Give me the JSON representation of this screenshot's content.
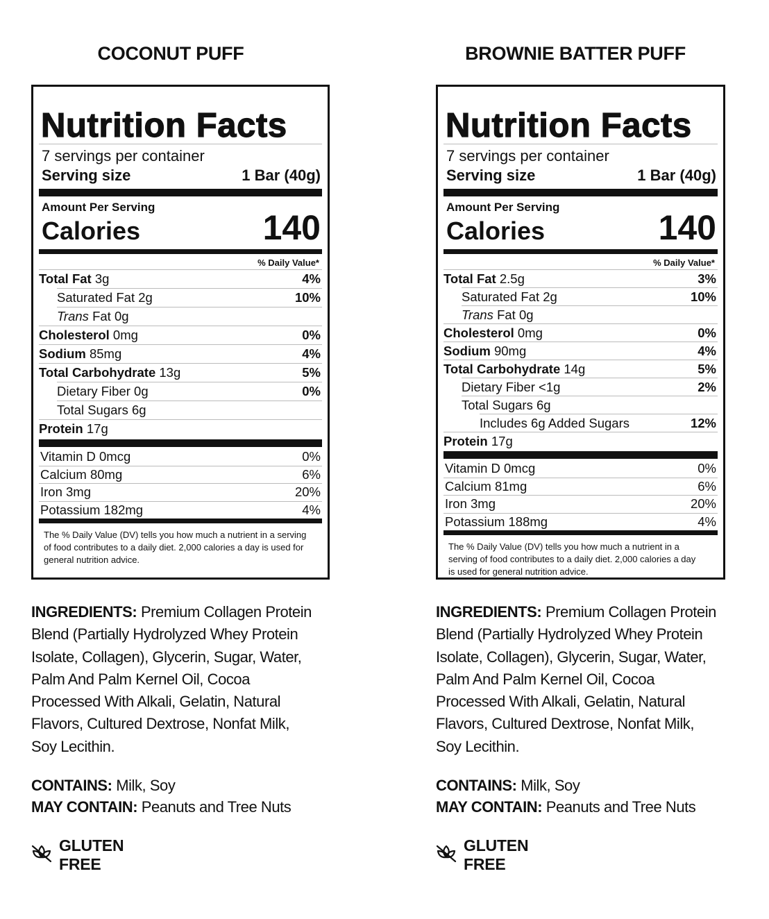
{
  "products": [
    {
      "title": "COCONUT PUFF",
      "nutrition": {
        "heading": "Nutrition Facts",
        "servings": "7 servings per container",
        "serving_size_label": "Serving size",
        "serving_size_value": "1 Bar (40g)",
        "amount_per_serving": "Amount Per Serving",
        "calories_label": "Calories",
        "calories_value": "140",
        "dv_header": "% Daily Value*",
        "rows": [
          {
            "name": "Total Fat",
            "amount": "3g",
            "dv": "4%",
            "bold": true,
            "indent": 0
          },
          {
            "name": "Saturated Fat",
            "amount": "2g",
            "dv": "10%",
            "bold": false,
            "indent": 1
          },
          {
            "italic": "Trans",
            "name": "Fat",
            "amount": "0g",
            "dv": "",
            "bold": false,
            "indent": 1
          },
          {
            "name": "Cholesterol",
            "amount": "0mg",
            "dv": "0%",
            "bold": true,
            "indent": 0
          },
          {
            "name": "Sodium",
            "amount": "85mg",
            "dv": "4%",
            "bold": true,
            "indent": 0
          },
          {
            "name": "Total Carbohydrate",
            "amount": "13g",
            "dv": "5%",
            "bold": true,
            "indent": 0
          },
          {
            "name": "Dietary Fiber",
            "amount": "0g",
            "dv": "0%",
            "bold": false,
            "indent": 1
          },
          {
            "name": "Total Sugars",
            "amount": "6g",
            "dv": "",
            "bold": false,
            "indent": 1
          },
          {
            "name": "Protein",
            "amount": "17g",
            "dv": "",
            "bold": true,
            "indent": 0
          }
        ],
        "vitamins": [
          {
            "name": "Vitamin D 0mcg",
            "dv": "0%"
          },
          {
            "name": "Calcium 80mg",
            "dv": "6%"
          },
          {
            "name": "Iron 3mg",
            "dv": "20%"
          },
          {
            "name": "Potassium 182mg",
            "dv": "4%"
          }
        ],
        "footnote": "The % Daily Value (DV) tells you how much a nutrient in a serving of food contributes to a daily diet. 2,000 calories a day is used for general nutrition advice."
      },
      "ingredients_label": "INGREDIENTS:",
      "ingredients": "Premium Collagen Protein Blend (Partially Hydrolyzed Whey Protein Isolate, Collagen), Glycerin, Sugar, Water, Palm And Palm Kernel Oil, Cocoa Processed With Alkali, Gelatin, Natural Flavors, Cultured Dextrose, Nonfat Milk, Soy Lecithin.",
      "contains_label": "CONTAINS:",
      "contains": "Milk, Soy",
      "may_contain_label": "MAY CONTAIN:",
      "may_contain": "Peanuts and Tree Nuts",
      "badge": {
        "icon": "wheat-icon",
        "label": "GLUTEN FREE"
      }
    },
    {
      "title": "BROWNIE BATTER PUFF",
      "nutrition": {
        "heading": "Nutrition Facts",
        "servings": "7 servings per container",
        "serving_size_label": "Serving size",
        "serving_size_value": "1 Bar (40g)",
        "amount_per_serving": "Amount Per Serving",
        "calories_label": "Calories",
        "calories_value": "140",
        "dv_header": "% Daily Value*",
        "rows": [
          {
            "name": "Total Fat",
            "amount": "2.5g",
            "dv": "3%",
            "bold": true,
            "indent": 0
          },
          {
            "name": "Saturated Fat",
            "amount": "2g",
            "dv": "10%",
            "bold": false,
            "indent": 1
          },
          {
            "italic": "Trans",
            "name": "Fat",
            "amount": "0g",
            "dv": "",
            "bold": false,
            "indent": 1
          },
          {
            "name": "Cholesterol",
            "amount": "0mg",
            "dv": "0%",
            "bold": true,
            "indent": 0
          },
          {
            "name": "Sodium",
            "amount": "90mg",
            "dv": "4%",
            "bold": true,
            "indent": 0
          },
          {
            "name": "Total Carbohydrate",
            "amount": "14g",
            "dv": "5%",
            "bold": true,
            "indent": 0
          },
          {
            "name": "Dietary Fiber",
            "amount": "<1g",
            "dv": "2%",
            "bold": false,
            "indent": 1
          },
          {
            "name": "Total Sugars",
            "amount": "6g",
            "dv": "",
            "bold": false,
            "indent": 1
          },
          {
            "name": "Includes 6g Added Sugars",
            "amount": "",
            "dv": "12%",
            "bold": false,
            "indent": 2
          },
          {
            "name": "Protein",
            "amount": "17g",
            "dv": "",
            "bold": true,
            "indent": 0
          }
        ],
        "vitamins": [
          {
            "name": "Vitamin D 0mcg",
            "dv": "0%"
          },
          {
            "name": "Calcium 81mg",
            "dv": "6%"
          },
          {
            "name": "Iron 3mg",
            "dv": "20%"
          },
          {
            "name": "Potassium 188mg",
            "dv": "4%"
          }
        ],
        "footnote": "The % Daily Value (DV) tells you how much a nutrient in a serving of food contributes to a daily diet. 2,000 calories a day is used for general nutrition advice."
      },
      "ingredients_label": "INGREDIENTS:",
      "ingredients": "Premium Collagen Protein Blend (Partially Hydrolyzed Whey Protein Isolate, Collagen), Glycerin, Sugar, Water, Palm And Palm Kernel Oil, Cocoa Processed With Alkali, Gelatin, Natural Flavors, Cultured Dextrose, Nonfat Milk, Soy Lecithin.",
      "contains_label": "CONTAINS:",
      "contains": "Milk, Soy",
      "may_contain_label": "MAY CONTAIN:",
      "may_contain": "Peanuts and Tree Nuts",
      "badge": {
        "icon": "wheat-icon",
        "label": "GLUTEN FREE"
      }
    }
  ]
}
